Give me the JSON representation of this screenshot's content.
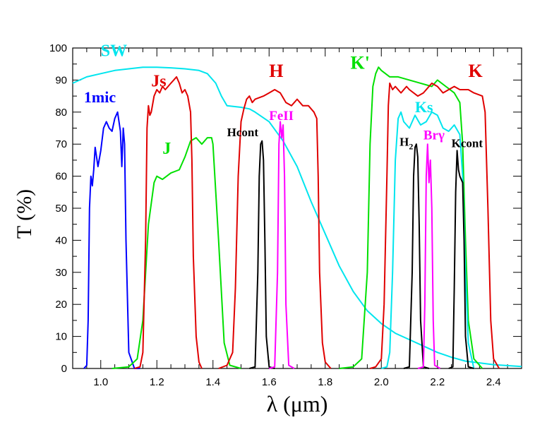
{
  "chart_data": {
    "type": "line",
    "title": "",
    "xlabel": "λ (μm)",
    "ylabel": "T (%)",
    "xlim": [
      0.9,
      2.5
    ],
    "ylim": [
      0,
      100
    ],
    "x_ticks": [
      1.0,
      1.2,
      1.4,
      1.6,
      1.8,
      2.0,
      2.2,
      2.4
    ],
    "x_tick_labels": [
      "1.0",
      "1.2",
      "1.4",
      "1.6",
      "1.8",
      "2.0",
      "2.2",
      "2.4"
    ],
    "y_ticks": [
      0,
      10,
      20,
      30,
      40,
      50,
      60,
      70,
      80,
      90,
      100
    ],
    "y_tick_labels": [
      "0",
      "10",
      "20",
      "30",
      "40",
      "50",
      "60",
      "70",
      "80",
      "90",
      "100"
    ],
    "grid": false,
    "legend": "none",
    "series": [
      {
        "name": "SW",
        "color": "#00e5ee",
        "points": [
          [
            0.9,
            89
          ],
          [
            0.95,
            91
          ],
          [
            1.0,
            92
          ],
          [
            1.05,
            93
          ],
          [
            1.1,
            93.5
          ],
          [
            1.15,
            94
          ],
          [
            1.2,
            94
          ],
          [
            1.25,
            93.8
          ],
          [
            1.3,
            93.5
          ],
          [
            1.35,
            93
          ],
          [
            1.38,
            92
          ],
          [
            1.41,
            89
          ],
          [
            1.43,
            85
          ],
          [
            1.45,
            82
          ],
          [
            1.5,
            81.5
          ],
          [
            1.53,
            81
          ],
          [
            1.55,
            80
          ],
          [
            1.6,
            77
          ],
          [
            1.65,
            71
          ],
          [
            1.7,
            63
          ],
          [
            1.75,
            52
          ],
          [
            1.8,
            42
          ],
          [
            1.85,
            32
          ],
          [
            1.9,
            24
          ],
          [
            1.95,
            18
          ],
          [
            2.0,
            14
          ],
          [
            2.05,
            11
          ],
          [
            2.1,
            9
          ],
          [
            2.15,
            7
          ],
          [
            2.2,
            5
          ],
          [
            2.25,
            3.5
          ],
          [
            2.3,
            2.3
          ],
          [
            2.4,
            1.2
          ],
          [
            2.5,
            0.6
          ]
        ]
      },
      {
        "name": "1mic",
        "color": "#0000ff",
        "points": [
          [
            0.94,
            0
          ],
          [
            0.95,
            1
          ],
          [
            0.955,
            15
          ],
          [
            0.96,
            50
          ],
          [
            0.965,
            60
          ],
          [
            0.97,
            57
          ],
          [
            0.975,
            62
          ],
          [
            0.98,
            69
          ],
          [
            0.99,
            63
          ],
          [
            1.0,
            68
          ],
          [
            1.01,
            75
          ],
          [
            1.02,
            77
          ],
          [
            1.03,
            75
          ],
          [
            1.04,
            74
          ],
          [
            1.05,
            78
          ],
          [
            1.06,
            80
          ],
          [
            1.07,
            74
          ],
          [
            1.075,
            63
          ],
          [
            1.08,
            75
          ],
          [
            1.085,
            70
          ],
          [
            1.09,
            40
          ],
          [
            1.1,
            5
          ],
          [
            1.12,
            0
          ],
          [
            1.14,
            0
          ]
        ]
      },
      {
        "name": "J",
        "color": "#00e000",
        "points": [
          [
            1.04,
            0
          ],
          [
            1.1,
            0.5
          ],
          [
            1.13,
            3
          ],
          [
            1.15,
            15
          ],
          [
            1.17,
            45
          ],
          [
            1.19,
            58
          ],
          [
            1.2,
            60
          ],
          [
            1.22,
            59
          ],
          [
            1.25,
            61
          ],
          [
            1.28,
            62
          ],
          [
            1.3,
            66
          ],
          [
            1.32,
            71
          ],
          [
            1.34,
            72
          ],
          [
            1.36,
            70
          ],
          [
            1.38,
            72
          ],
          [
            1.395,
            72
          ],
          [
            1.4,
            70
          ],
          [
            1.42,
            40
          ],
          [
            1.44,
            8
          ],
          [
            1.46,
            1
          ],
          [
            1.5,
            0
          ]
        ]
      },
      {
        "name": "Js",
        "color": "#e00000",
        "points": [
          [
            1.12,
            0
          ],
          [
            1.14,
            0.5
          ],
          [
            1.15,
            5
          ],
          [
            1.16,
            40
          ],
          [
            1.165,
            75
          ],
          [
            1.17,
            82
          ],
          [
            1.175,
            79
          ],
          [
            1.18,
            80
          ],
          [
            1.19,
            85
          ],
          [
            1.2,
            87
          ],
          [
            1.21,
            86
          ],
          [
            1.22,
            88
          ],
          [
            1.23,
            87
          ],
          [
            1.24,
            88
          ],
          [
            1.25,
            89
          ],
          [
            1.26,
            90
          ],
          [
            1.27,
            91
          ],
          [
            1.28,
            89
          ],
          [
            1.29,
            86
          ],
          [
            1.3,
            87
          ],
          [
            1.31,
            85
          ],
          [
            1.32,
            80
          ],
          [
            1.325,
            65
          ],
          [
            1.33,
            35
          ],
          [
            1.34,
            10
          ],
          [
            1.35,
            2
          ],
          [
            1.36,
            0
          ]
        ]
      },
      {
        "name": "H",
        "color": "#e00000",
        "points": [
          [
            1.42,
            0
          ],
          [
            1.45,
            1
          ],
          [
            1.47,
            5
          ],
          [
            1.48,
            25
          ],
          [
            1.49,
            60
          ],
          [
            1.5,
            77
          ],
          [
            1.51,
            81
          ],
          [
            1.52,
            84
          ],
          [
            1.53,
            85
          ],
          [
            1.54,
            83
          ],
          [
            1.55,
            84
          ],
          [
            1.58,
            85
          ],
          [
            1.6,
            86
          ],
          [
            1.62,
            87
          ],
          [
            1.64,
            86
          ],
          [
            1.66,
            83
          ],
          [
            1.68,
            82
          ],
          [
            1.7,
            84
          ],
          [
            1.72,
            82
          ],
          [
            1.74,
            82
          ],
          [
            1.76,
            80
          ],
          [
            1.77,
            78
          ],
          [
            1.775,
            60
          ],
          [
            1.78,
            30
          ],
          [
            1.79,
            8
          ],
          [
            1.8,
            2
          ],
          [
            1.82,
            0
          ]
        ]
      },
      {
        "name": "K'",
        "color": "#00e000",
        "points": [
          [
            1.85,
            0
          ],
          [
            1.9,
            0.5
          ],
          [
            1.93,
            3
          ],
          [
            1.95,
            30
          ],
          [
            1.96,
            70
          ],
          [
            1.97,
            88
          ],
          [
            1.98,
            92
          ],
          [
            1.99,
            94
          ],
          [
            2.0,
            93
          ],
          [
            2.03,
            91
          ],
          [
            2.06,
            91
          ],
          [
            2.1,
            90
          ],
          [
            2.14,
            89
          ],
          [
            2.18,
            88
          ],
          [
            2.2,
            90
          ],
          [
            2.23,
            88
          ],
          [
            2.26,
            86
          ],
          [
            2.28,
            83
          ],
          [
            2.29,
            70
          ],
          [
            2.3,
            40
          ],
          [
            2.31,
            15
          ],
          [
            2.33,
            3
          ],
          [
            2.36,
            0
          ]
        ]
      },
      {
        "name": "K",
        "color": "#e00000",
        "points": [
          [
            1.96,
            0
          ],
          [
            1.98,
            0.5
          ],
          [
            2.0,
            3
          ],
          [
            2.01,
            20
          ],
          [
            2.02,
            60
          ],
          [
            2.025,
            82
          ],
          [
            2.03,
            89
          ],
          [
            2.04,
            87
          ],
          [
            2.05,
            88
          ],
          [
            2.07,
            86
          ],
          [
            2.09,
            88
          ],
          [
            2.1,
            87
          ],
          [
            2.13,
            85
          ],
          [
            2.15,
            86
          ],
          [
            2.18,
            89
          ],
          [
            2.2,
            88
          ],
          [
            2.22,
            86
          ],
          [
            2.24,
            87
          ],
          [
            2.26,
            88
          ],
          [
            2.28,
            87
          ],
          [
            2.31,
            87
          ],
          [
            2.33,
            86
          ],
          [
            2.36,
            85
          ],
          [
            2.37,
            80
          ],
          [
            2.38,
            50
          ],
          [
            2.39,
            15
          ],
          [
            2.4,
            3
          ],
          [
            2.42,
            0
          ]
        ]
      },
      {
        "name": "Ks",
        "color": "#00e5ee",
        "points": [
          [
            2.0,
            0
          ],
          [
            2.02,
            0.5
          ],
          [
            2.03,
            5
          ],
          [
            2.04,
            30
          ],
          [
            2.05,
            65
          ],
          [
            2.06,
            78
          ],
          [
            2.07,
            80
          ],
          [
            2.08,
            77
          ],
          [
            2.1,
            75
          ],
          [
            2.12,
            79
          ],
          [
            2.14,
            76
          ],
          [
            2.16,
            77
          ],
          [
            2.18,
            80
          ],
          [
            2.2,
            79
          ],
          [
            2.22,
            75
          ],
          [
            2.24,
            74
          ],
          [
            2.26,
            76
          ],
          [
            2.28,
            73
          ],
          [
            2.29,
            60
          ],
          [
            2.3,
            30
          ],
          [
            2.31,
            8
          ],
          [
            2.33,
            0
          ]
        ]
      },
      {
        "name": "Hcont",
        "color": "#000000",
        "points": [
          [
            1.53,
            0
          ],
          [
            1.55,
            0.5
          ],
          [
            1.56,
            30
          ],
          [
            1.565,
            60
          ],
          [
            1.57,
            70
          ],
          [
            1.575,
            71
          ],
          [
            1.58,
            65
          ],
          [
            1.585,
            40
          ],
          [
            1.59,
            10
          ],
          [
            1.6,
            0.5
          ],
          [
            1.62,
            0
          ]
        ]
      },
      {
        "name": "FeII",
        "color": "#ff00ff",
        "points": [
          [
            1.6,
            0
          ],
          [
            1.62,
            0.5
          ],
          [
            1.63,
            30
          ],
          [
            1.635,
            70
          ],
          [
            1.64,
            77
          ],
          [
            1.645,
            72
          ],
          [
            1.65,
            76
          ],
          [
            1.655,
            60
          ],
          [
            1.66,
            20
          ],
          [
            1.67,
            1
          ],
          [
            1.69,
            0
          ]
        ]
      },
      {
        "name": "H2",
        "color": "#000000",
        "points": [
          [
            2.08,
            0
          ],
          [
            2.1,
            0.5
          ],
          [
            2.11,
            30
          ],
          [
            2.115,
            60
          ],
          [
            2.12,
            69
          ],
          [
            2.125,
            70
          ],
          [
            2.13,
            66
          ],
          [
            2.135,
            45
          ],
          [
            2.14,
            15
          ],
          [
            2.15,
            0.5
          ],
          [
            2.17,
            0
          ]
        ]
      },
      {
        "name": "Brγ",
        "color": "#ff00ff",
        "points": [
          [
            2.13,
            0
          ],
          [
            2.15,
            0.5
          ],
          [
            2.155,
            20
          ],
          [
            2.16,
            60
          ],
          [
            2.165,
            70
          ],
          [
            2.17,
            58
          ],
          [
            2.175,
            65
          ],
          [
            2.18,
            50
          ],
          [
            2.185,
            15
          ],
          [
            2.19,
            1
          ],
          [
            2.21,
            0
          ]
        ]
      },
      {
        "name": "Kcont",
        "color": "#000000",
        "points": [
          [
            2.24,
            0
          ],
          [
            2.255,
            0.5
          ],
          [
            2.26,
            25
          ],
          [
            2.265,
            55
          ],
          [
            2.27,
            68
          ],
          [
            2.275,
            62
          ],
          [
            2.28,
            60
          ],
          [
            2.29,
            58
          ],
          [
            2.295,
            40
          ],
          [
            2.3,
            10
          ],
          [
            2.31,
            0.5
          ],
          [
            2.33,
            0
          ]
        ]
      }
    ],
    "annotations": [
      {
        "text": "SW",
        "x": 1.0,
        "y": 97.5,
        "color": "#00e5ee",
        "size": 24
      },
      {
        "text": "1mic",
        "x": 0.94,
        "y": 83,
        "color": "#0000ff",
        "size": 22
      },
      {
        "text": "Js",
        "x": 1.18,
        "y": 88,
        "color": "#e00000",
        "size": 24
      },
      {
        "text": "J",
        "x": 1.22,
        "y": 67,
        "color": "#00e000",
        "size": 24
      },
      {
        "text": "H",
        "x": 1.6,
        "y": 91,
        "color": "#e00000",
        "size": 26
      },
      {
        "text": "Hcont",
        "x": 1.45,
        "y": 72.5,
        "color": "#000000",
        "size": 17
      },
      {
        "text": "FeII",
        "x": 1.6,
        "y": 77.5,
        "color": "#ff00ff",
        "size": 19
      },
      {
        "text": "K'",
        "x": 1.89,
        "y": 93.5,
        "color": "#00e000",
        "size": 26
      },
      {
        "text": "K",
        "x": 2.31,
        "y": 91,
        "color": "#e00000",
        "size": 26
      },
      {
        "text": "Ks",
        "x": 2.12,
        "y": 80,
        "color": "#00e5ee",
        "size": 22
      },
      {
        "text": "Brγ",
        "x": 2.15,
        "y": 71.5,
        "color": "#ff00ff",
        "size": 19
      },
      {
        "text": "Kcont",
        "x": 2.25,
        "y": 69,
        "color": "#000000",
        "size": 17
      }
    ],
    "subscript_annotations": [
      {
        "text": "H",
        "sub": "2",
        "x": 2.065,
        "y": 69.5,
        "color": "#000000",
        "size": 17
      }
    ]
  }
}
